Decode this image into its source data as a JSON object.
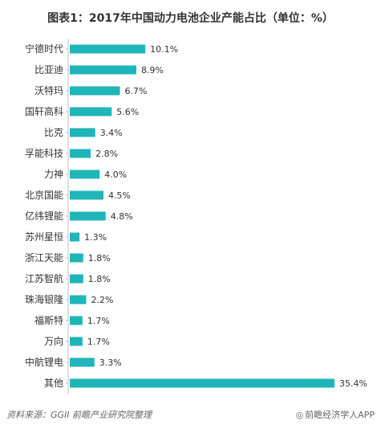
{
  "title": "图表1：2017年中国动力电池企业产能占比（单位：%）",
  "footer": {
    "source": "资料来源：GGII 前瞻产业研究院整理",
    "brand": "前瞻经济学人APP"
  },
  "colors": {
    "bar": "#1fb5b9",
    "text": "#333333",
    "axis": "#bfbfbf"
  },
  "chart_data": {
    "type": "bar",
    "orientation": "horizontal",
    "categories": [
      "宁德时代",
      "比亚迪",
      "沃特玛",
      "国轩高科",
      "比克",
      "孚能科技",
      "力神",
      "北京国能",
      "亿纬锂能",
      "苏州星恒",
      "浙江天能",
      "江苏智航",
      "珠海银隆",
      "福斯特",
      "万向",
      "中航锂电",
      "其他"
    ],
    "values": [
      10.1,
      8.9,
      6.7,
      5.6,
      3.4,
      2.8,
      4.0,
      4.5,
      4.8,
      1.3,
      1.8,
      1.8,
      2.2,
      1.7,
      1.7,
      3.3,
      35.4
    ],
    "value_labels": [
      "10.1%",
      "8.9%",
      "6.7%",
      "5.6%",
      "3.4%",
      "2.8%",
      "4.0%",
      "4.5%",
      "4.8%",
      "1.3%",
      "1.8%",
      "1.8%",
      "2.2%",
      "1.7%",
      "1.7%",
      "3.3%",
      "35.4%"
    ],
    "title": "图表1：2017年中国动力电池企业产能占比（单位：%）",
    "xlabel": "",
    "ylabel": "",
    "xlim": [
      0,
      35.4
    ],
    "grid": false,
    "legend": "none"
  }
}
